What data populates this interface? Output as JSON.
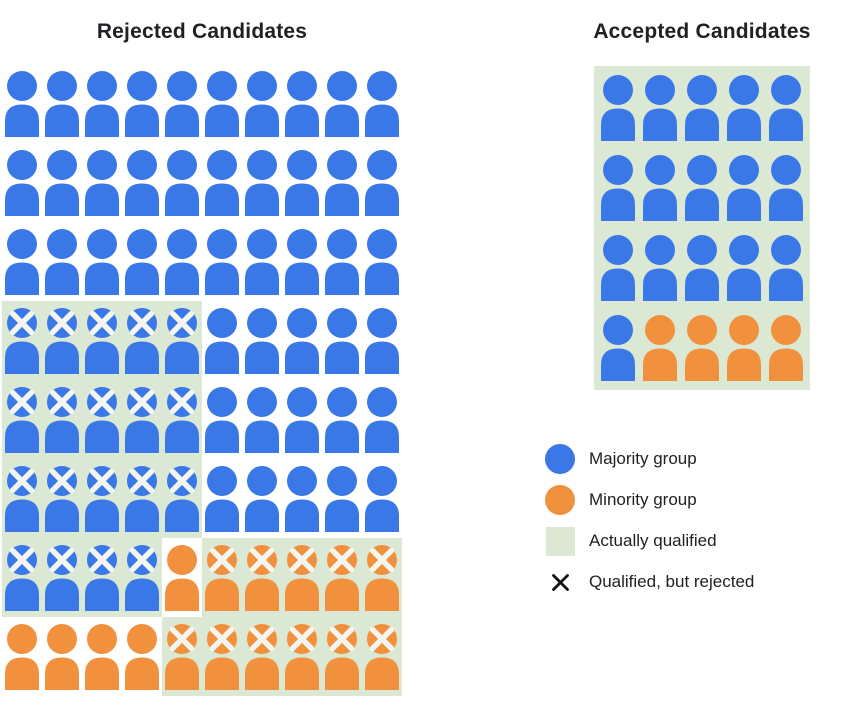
{
  "titles": {
    "rejected": "Rejected Candidates",
    "accepted": "Accepted Candidates"
  },
  "colors": {
    "majority_blue": "#3B78E7",
    "minority_orange": "#F2913D",
    "qualified_green": "#DBE8D4",
    "icon_x": "#F2F5F0",
    "legend_x": "#111111"
  },
  "chart_data": {
    "type": "pictogram-grid",
    "legend": [
      {
        "swatch": "circle-blue",
        "label": "Majority group"
      },
      {
        "swatch": "circle-orange",
        "label": "Minority group"
      },
      {
        "swatch": "square-green",
        "label": "Actually qualified"
      },
      {
        "swatch": "x-mark",
        "label": "Qualified, but rejected"
      }
    ],
    "cell_legend": "b = majority(blue), o = minority(orange), x = qualified-but-rejected mark, q = on actually-qualified (green) background",
    "rejected_grid": {
      "columns": 10,
      "rows": [
        [
          "b",
          "b",
          "b",
          "b",
          "b",
          "b",
          "b",
          "b",
          "b",
          "b"
        ],
        [
          "b",
          "b",
          "b",
          "b",
          "b",
          "b",
          "b",
          "b",
          "b",
          "b"
        ],
        [
          "b",
          "b",
          "b",
          "b",
          "b",
          "b",
          "b",
          "b",
          "b",
          "b"
        ],
        [
          "bxq",
          "bxq",
          "bxq",
          "bxq",
          "bxq",
          "b",
          "b",
          "b",
          "b",
          "b"
        ],
        [
          "bxq",
          "bxq",
          "bxq",
          "bxq",
          "bxq",
          "b",
          "b",
          "b",
          "b",
          "b"
        ],
        [
          "bxq",
          "bxq",
          "bxq",
          "bxq",
          "bxq",
          "b",
          "b",
          "b",
          "b",
          "b"
        ],
        [
          "bxq",
          "bxq",
          "bxq",
          "bxq",
          "o",
          "oxq",
          "oxq",
          "oxq",
          "oxq",
          "oxq"
        ],
        [
          "o",
          "o",
          "o",
          "o",
          "oxq",
          "oxq",
          "oxq",
          "oxq",
          "oxq",
          "oxq"
        ]
      ]
    },
    "accepted_grid": {
      "columns": 5,
      "all_qualified_background": true,
      "rows": [
        [
          "b",
          "b",
          "b",
          "b",
          "b"
        ],
        [
          "b",
          "b",
          "b",
          "b",
          "b"
        ],
        [
          "b",
          "b",
          "b",
          "b",
          "b"
        ],
        [
          "b",
          "o",
          "o",
          "o",
          "o"
        ]
      ]
    },
    "counts": {
      "rejected_total": 80,
      "rejected_majority_qualified_rejected": 19,
      "rejected_minority_qualified_rejected": 11,
      "accepted_total": 20,
      "accepted_majority": 16,
      "accepted_minority": 4
    }
  }
}
